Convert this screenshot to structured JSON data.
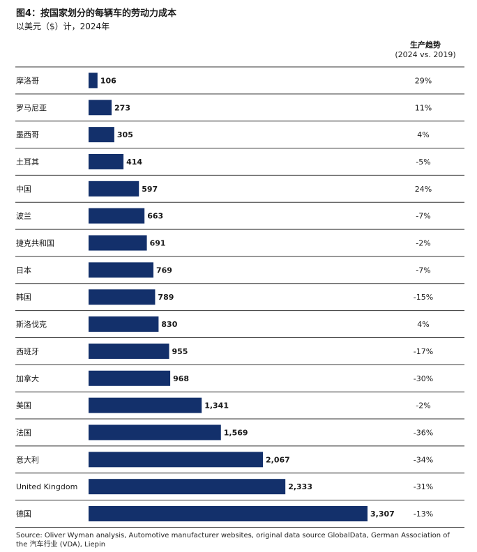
{
  "header": {
    "title": "图4：按国家划分的每辆车的劳动力成本",
    "subtitle": "以美元（$）计，2024年"
  },
  "trend_header": {
    "line1": "生产趋势",
    "line2": "(2024 vs. 2019)"
  },
  "source": "Source: Oliver Wyman analysis, Automotive manufacturer websites, original data source GlobalData, German Association of the 汽车行业 (VDA), Liepin",
  "colors": {
    "bar": "#13306b",
    "divider": "#333333",
    "text": "#1a1a1a"
  },
  "chart_data": {
    "type": "bar",
    "orientation": "horizontal",
    "categories": [
      "摩洛哥",
      "罗马尼亚",
      "墨西哥",
      "土耳其",
      "中国",
      "波兰",
      "捷克共和国",
      "日本",
      "韩国",
      "斯洛伐克",
      "西班牙",
      "加拿大",
      "美国",
      "法国",
      "意大利",
      "United Kingdom",
      "德国"
    ],
    "values": [
      106,
      273,
      305,
      414,
      597,
      663,
      691,
      769,
      789,
      830,
      955,
      968,
      1341,
      1569,
      2067,
      2333,
      3307
    ],
    "value_labels": [
      "106",
      "273",
      "305",
      "414",
      "597",
      "663",
      "691",
      "769",
      "789",
      "830",
      "955",
      "968",
      "1,341",
      "1,569",
      "2,067",
      "2,333",
      "3,307"
    ],
    "trend": [
      "29%",
      "11%",
      "4%",
      "-5%",
      "24%",
      "-7%",
      "-2%",
      "-7%",
      "-15%",
      "4%",
      "-17%",
      "-30%",
      "-2%",
      "-36%",
      "-34%",
      "-31%",
      "-13%"
    ],
    "xlim": [
      0,
      3307
    ],
    "grid": false,
    "legend": "none"
  }
}
